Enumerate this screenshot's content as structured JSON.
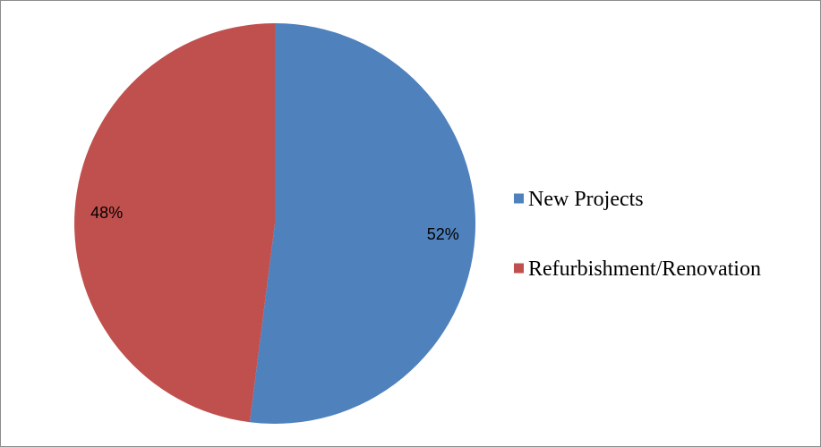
{
  "chart_data": {
    "type": "pie",
    "categories": [
      "New Projects",
      "Refurbishment/Renovation"
    ],
    "values": [
      52,
      48
    ],
    "data_labels": [
      "52%",
      "48%"
    ],
    "colors": [
      "#4f81bd",
      "#c0504d"
    ],
    "start_angle_deg": 0,
    "direction": "clockwise",
    "legend_position": "right"
  }
}
